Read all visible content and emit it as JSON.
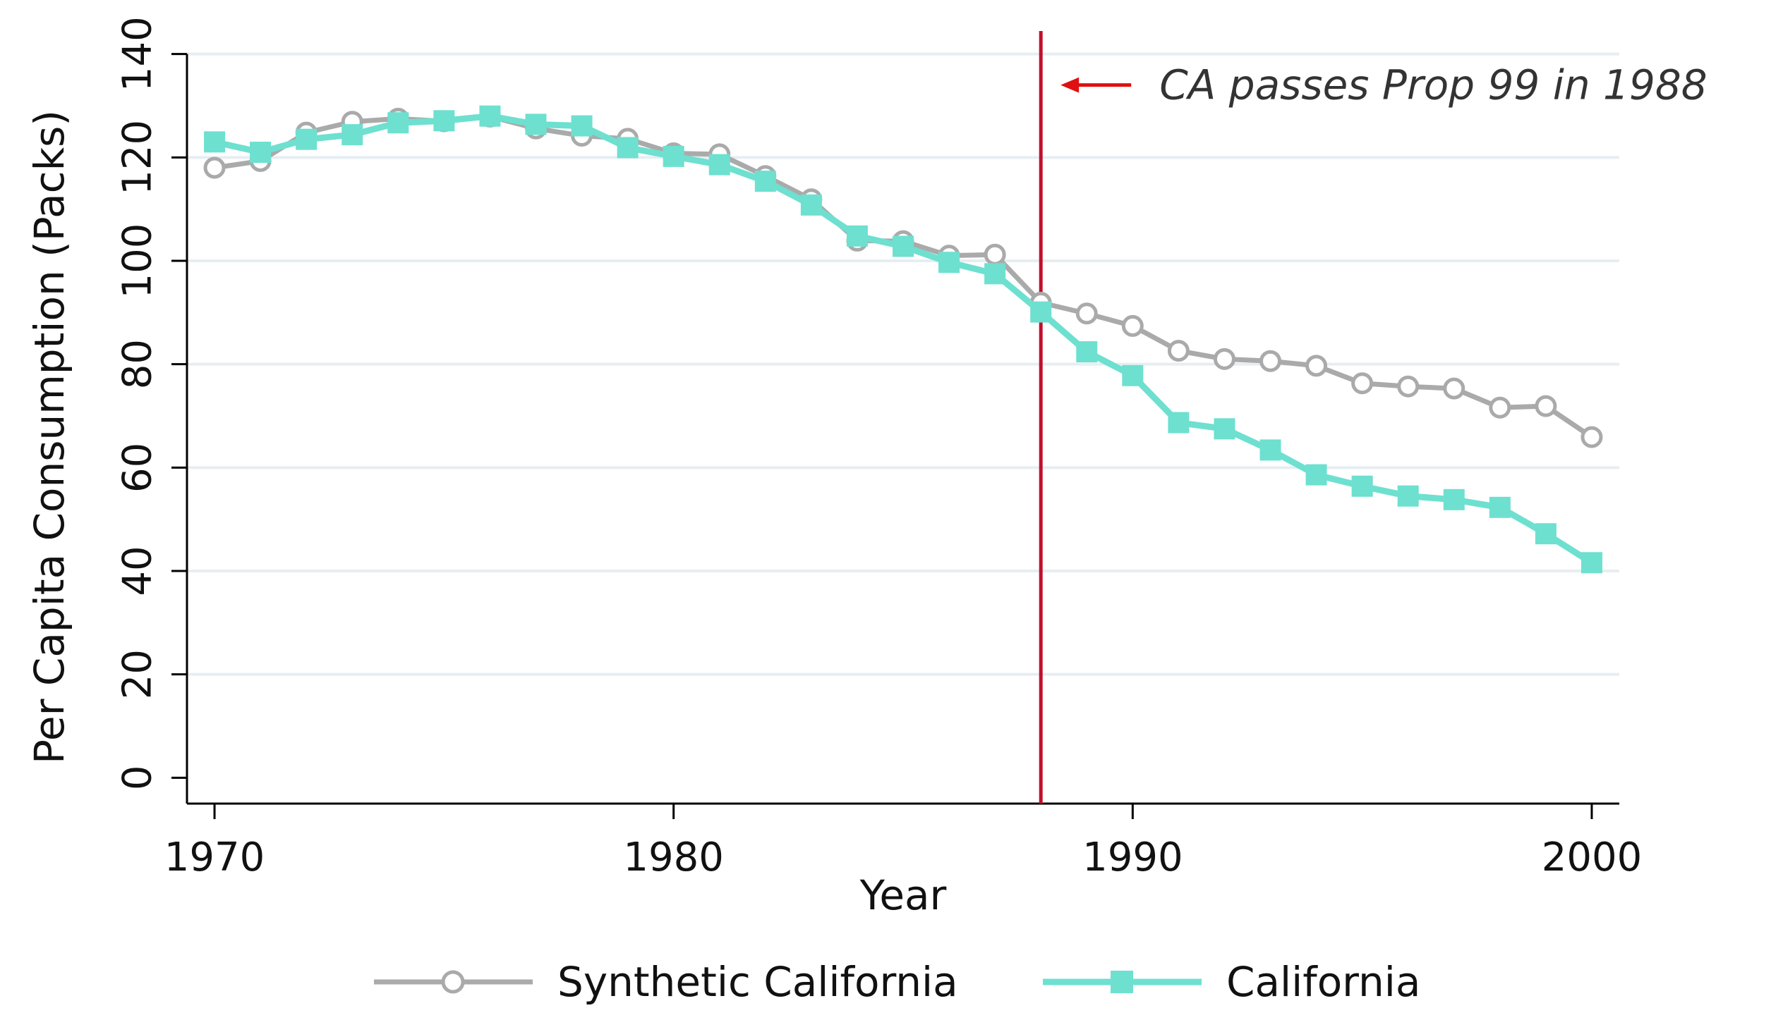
{
  "chart_data": {
    "type": "line",
    "xlabel": "Year",
    "ylabel": "Per Capita Consumption (Packs)",
    "xlim": [
      1969.4,
      2000.6
    ],
    "ylim": [
      -5,
      145
    ],
    "x_ticks": [
      1970,
      1980,
      1990,
      2000
    ],
    "y_ticks": [
      0,
      20,
      40,
      60,
      80,
      100,
      120,
      140
    ],
    "grid": "horizontal",
    "legend_position": "bottom",
    "x": [
      1970,
      1971,
      1972,
      1973,
      1974,
      1975,
      1976,
      1977,
      1978,
      1979,
      1980,
      1981,
      1982,
      1983,
      1984,
      1985,
      1986,
      1987,
      1988,
      1989,
      1990,
      1991,
      1992,
      1993,
      1994,
      1995,
      1996,
      1997,
      1998,
      1999,
      2000
    ],
    "series": [
      {
        "name": "Synthetic California",
        "color": "#aaaaaa",
        "marker": "hollow-circle",
        "values": [
          118.0,
          119.3,
          124.8,
          126.9,
          127.5,
          127.0,
          127.9,
          125.6,
          124.2,
          123.6,
          120.8,
          120.6,
          116.4,
          111.9,
          103.9,
          103.8,
          101.0,
          101.2,
          91.9,
          89.8,
          87.4,
          82.6,
          81.0,
          80.6,
          79.7,
          76.3,
          75.7,
          75.3,
          71.6,
          71.9,
          65.9
        ]
      },
      {
        "name": "California",
        "color": "#6ee0d0",
        "marker": "filled-square",
        "values": [
          123.0,
          121.0,
          123.5,
          124.4,
          126.7,
          127.1,
          128.0,
          126.4,
          126.1,
          121.9,
          120.2,
          118.6,
          115.4,
          110.8,
          104.8,
          102.8,
          99.7,
          97.5,
          90.1,
          82.4,
          77.8,
          68.7,
          67.5,
          63.4,
          58.6,
          56.4,
          54.5,
          53.8,
          52.3,
          47.2,
          41.6
        ]
      }
    ],
    "intervention": {
      "x": 1988,
      "color": "#c0102c",
      "annotation": "CA passes Prop 99 in 1988",
      "arrow_color": "#e01010"
    }
  }
}
